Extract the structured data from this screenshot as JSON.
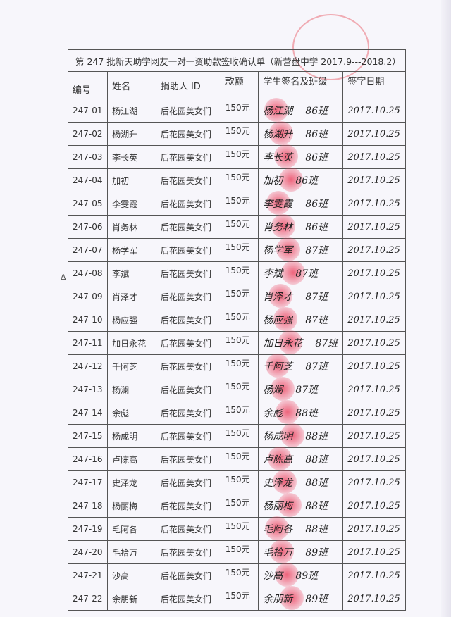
{
  "title": "第 247 批新天助学网友一对一资助款签收确认单（新营盘中学 2017.9---2018.2）",
  "headers": [
    "编号",
    "姓名",
    "捐助人 ID",
    "款额",
    "学生签名及班级",
    "签字日期"
  ],
  "margin_mark": "Δ",
  "stamp_color": "#e6505a",
  "rows": [
    {
      "id": "247-01",
      "name": "杨江湖",
      "donor": "后花园美女们",
      "amount": "150元",
      "signature": "杨江湖",
      "class": "86班",
      "date": "2017.10.25"
    },
    {
      "id": "247-02",
      "name": "杨湖升",
      "donor": "后花园美女们",
      "amount": "150元",
      "signature": "杨湖升",
      "class": "86班",
      "date": "2017.10.25"
    },
    {
      "id": "247-03",
      "name": "李长英",
      "donor": "后花园美女们",
      "amount": "150元",
      "signature": "李长英",
      "class": "86班",
      "date": "2017.10.25"
    },
    {
      "id": "247-04",
      "name": "加初",
      "donor": "后花园美女们",
      "amount": "150元",
      "signature": "加初",
      "class": "86班",
      "date": "2017.10.25"
    },
    {
      "id": "247-05",
      "name": "李雯霞",
      "donor": "后花园美女们",
      "amount": "150元",
      "signature": "李雯霞",
      "class": "86班",
      "date": "2017.10.25"
    },
    {
      "id": "247-06",
      "name": "肖务林",
      "donor": "后花园美女们",
      "amount": "150元",
      "signature": "肖务林",
      "class": "86班",
      "date": "2017.10.25"
    },
    {
      "id": "247-07",
      "name": "杨学军",
      "donor": "后花园美女们",
      "amount": "150元",
      "signature": "杨学军",
      "class": "87班",
      "date": "2017.10.25"
    },
    {
      "id": "247-08",
      "name": "李斌",
      "donor": "后花园美女们",
      "amount": "150元",
      "signature": "李斌",
      "class": "87班",
      "date": "2017.10.25"
    },
    {
      "id": "247-09",
      "name": "肖泽才",
      "donor": "后花园美女们",
      "amount": "150元",
      "signature": "肖泽才",
      "class": "87班",
      "date": "2017.10.25"
    },
    {
      "id": "247-10",
      "name": "杨应强",
      "donor": "后花园美女们",
      "amount": "150元",
      "signature": "杨应强",
      "class": "87班",
      "date": "2017.10.25"
    },
    {
      "id": "247-11",
      "name": "加日永花",
      "donor": "后花园美女们",
      "amount": "150元",
      "signature": "加日永花",
      "class": "87班",
      "date": "2017.10.25"
    },
    {
      "id": "247-12",
      "name": "千阿芝",
      "donor": "后花园美女们",
      "amount": "150元",
      "signature": "千阿芝",
      "class": "87班",
      "date": "2017.10.25"
    },
    {
      "id": "247-13",
      "name": "杨澜",
      "donor": "后花园美女们",
      "amount": "150元",
      "signature": "杨澜",
      "class": "87班",
      "date": "2017.10.25"
    },
    {
      "id": "247-14",
      "name": "余彪",
      "donor": "后花园美女们",
      "amount": "150元",
      "signature": "余彪",
      "class": "88班",
      "date": "2017.10.25"
    },
    {
      "id": "247-15",
      "name": "杨成明",
      "donor": "后花园美女们",
      "amount": "150元",
      "signature": "杨成明",
      "class": "88班",
      "date": "2017.10.25"
    },
    {
      "id": "247-16",
      "name": "卢陈高",
      "donor": "后花园美女们",
      "amount": "150元",
      "signature": "卢陈高",
      "class": "88班",
      "date": "2017.10.25"
    },
    {
      "id": "247-17",
      "name": "史泽龙",
      "donor": "后花园美女们",
      "amount": "150元",
      "signature": "史泽龙",
      "class": "88班",
      "date": "2017.10.25"
    },
    {
      "id": "247-18",
      "name": "杨丽梅",
      "donor": "后花园美女们",
      "amount": "150元",
      "signature": "杨丽梅",
      "class": "88班",
      "date": "2017.10.25"
    },
    {
      "id": "247-19",
      "name": "毛阿各",
      "donor": "后花园美女们",
      "amount": "150元",
      "signature": "毛阿各",
      "class": "88班",
      "date": "2017.10.25"
    },
    {
      "id": "247-20",
      "name": "毛拾万",
      "donor": "后花园美女们",
      "amount": "150元",
      "signature": "毛拾万",
      "class": "89班",
      "date": "2017.10.25"
    },
    {
      "id": "247-21",
      "name": "沙高",
      "donor": "后花园美女们",
      "amount": "150元",
      "signature": "沙高",
      "class": "89班",
      "date": "2017.10.25"
    },
    {
      "id": "247-22",
      "name": "余朋新",
      "donor": "后花园美女们",
      "amount": "150元",
      "signature": "余朋新",
      "class": "89班",
      "date": "2017.10.25"
    }
  ]
}
